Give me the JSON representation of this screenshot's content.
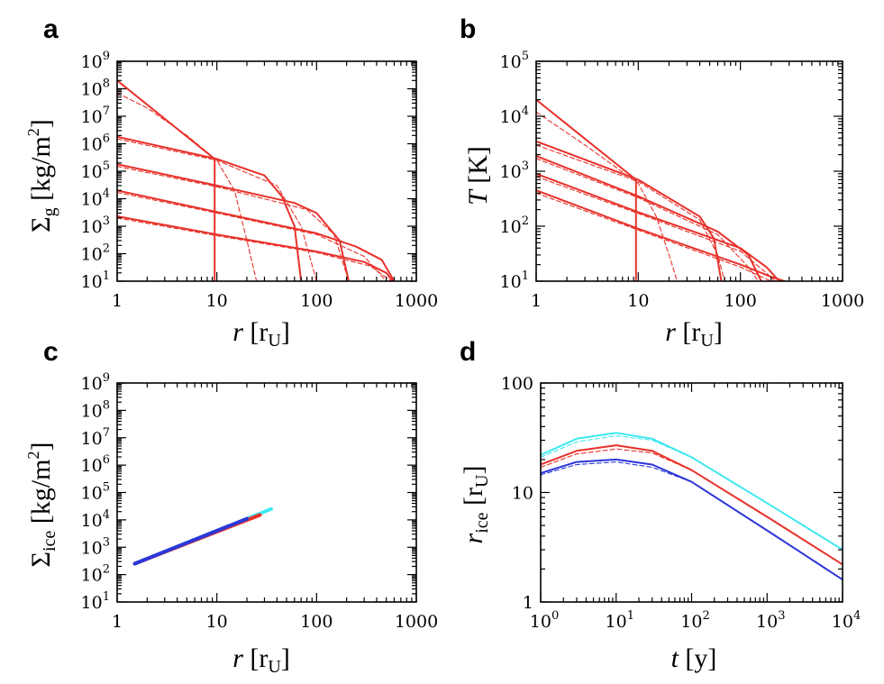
{
  "chart_data": [
    {
      "panel": "a",
      "type": "line",
      "xscale": "log",
      "yscale": "log",
      "xlim": [
        1,
        1000
      ],
      "ylim": [
        10,
        1000000000
      ],
      "xticks": [
        "1",
        "10",
        "100",
        "1000"
      ],
      "yticks": [
        "10^1",
        "10^2",
        "10^3",
        "10^4",
        "10^5",
        "10^6",
        "10^7",
        "10^8",
        "10^9"
      ],
      "xlabel": "r [r_U]",
      "ylabel": "Σ_g [kg/m^2]",
      "series": [
        {
          "name": "solid-1",
          "style": "solid",
          "color": "#e8312a",
          "points": [
            [
              1,
              200000000
            ],
            [
              9.5,
              280000
            ],
            [
              9.5,
              10
            ]
          ]
        },
        {
          "name": "solid-2",
          "style": "solid",
          "color": "#e8312a",
          "points": [
            [
              1,
              1800000
            ],
            [
              10,
              280000
            ],
            [
              30,
              70000
            ],
            [
              45,
              12000
            ],
            [
              60,
              1000
            ],
            [
              70,
              10
            ]
          ]
        },
        {
          "name": "solid-3",
          "style": "solid",
          "color": "#e8312a",
          "points": [
            [
              1,
              180000
            ],
            [
              10,
              30000
            ],
            [
              60,
              7000
            ],
            [
              100,
              3000
            ],
            [
              170,
              300
            ],
            [
              210,
              10
            ]
          ]
        },
        {
          "name": "solid-4",
          "style": "solid",
          "color": "#e8312a",
          "points": [
            [
              1,
              20000
            ],
            [
              10,
              3300
            ],
            [
              100,
              550
            ],
            [
              250,
              180
            ],
            [
              450,
              60
            ],
            [
              600,
              10
            ]
          ]
        },
        {
          "name": "solid-5",
          "style": "solid",
          "color": "#e8312a",
          "points": [
            [
              1,
              2300
            ],
            [
              10,
              500
            ],
            [
              100,
              120
            ],
            [
              300,
              50
            ],
            [
              500,
              20
            ],
            [
              580,
              10
            ]
          ]
        },
        {
          "name": "dashed-1",
          "style": "dashed",
          "color": "#e8312a",
          "points": [
            [
              1,
              70000000
            ],
            [
              2,
              20000000
            ],
            [
              5,
              2000000
            ],
            [
              10,
              250000
            ],
            [
              15,
              20000
            ],
            [
              20,
              300
            ],
            [
              25,
              10
            ]
          ]
        },
        {
          "name": "dashed-2",
          "style": "dashed",
          "color": "#e8312a",
          "points": [
            [
              1,
              1500000
            ],
            [
              10,
              250000
            ],
            [
              40,
              30000
            ],
            [
              70,
              1000
            ],
            [
              100,
              10
            ]
          ]
        },
        {
          "name": "dashed-3",
          "style": "dashed",
          "color": "#e8312a",
          "points": [
            [
              1,
              150000
            ],
            [
              10,
              27000
            ],
            [
              80,
              4000
            ],
            [
              150,
              500
            ],
            [
              210,
              10
            ]
          ]
        },
        {
          "name": "dashed-4",
          "style": "dashed",
          "color": "#e8312a",
          "points": [
            [
              1,
              17000
            ],
            [
              10,
              3000
            ],
            [
              100,
              500
            ],
            [
              300,
              80
            ],
            [
              500,
              10
            ]
          ]
        },
        {
          "name": "dashed-5",
          "style": "dashed",
          "color": "#e8312a",
          "points": [
            [
              1,
              2000
            ],
            [
              10,
              450
            ],
            [
              100,
              110
            ],
            [
              350,
              35
            ],
            [
              560,
              10
            ]
          ]
        }
      ]
    },
    {
      "panel": "b",
      "type": "line",
      "xscale": "log",
      "yscale": "log",
      "xlim": [
        1,
        1000
      ],
      "ylim": [
        10,
        100000
      ],
      "xticks": [
        "1",
        "10",
        "100",
        "1000"
      ],
      "yticks": [
        "10^1",
        "10^2",
        "10^3",
        "10^4",
        "10^5"
      ],
      "xlabel": "r [r_U]",
      "ylabel": "T [K]",
      "series": [
        {
          "name": "solid-1",
          "style": "solid",
          "color": "#e8312a",
          "points": [
            [
              1,
              20000
            ],
            [
              9.5,
              700
            ],
            [
              9.5,
              10
            ]
          ]
        },
        {
          "name": "solid-2",
          "style": "solid",
          "color": "#e8312a",
          "points": [
            [
              1,
              3500
            ],
            [
              10,
              700
            ],
            [
              40,
              150
            ],
            [
              55,
              60
            ],
            [
              65,
              10
            ]
          ]
        },
        {
          "name": "solid-3",
          "style": "solid",
          "color": "#e8312a",
          "points": [
            [
              1,
              1900
            ],
            [
              10,
              350
            ],
            [
              60,
              80
            ],
            [
              120,
              30
            ],
            [
              160,
              10
            ]
          ]
        },
        {
          "name": "solid-4",
          "style": "solid",
          "color": "#e8312a",
          "points": [
            [
              1,
              900
            ],
            [
              10,
              180
            ],
            [
              100,
              40
            ],
            [
              180,
              18
            ],
            [
              240,
              10
            ]
          ]
        },
        {
          "name": "solid-5",
          "style": "solid",
          "color": "#e8312a",
          "points": [
            [
              1,
              450
            ],
            [
              10,
              90
            ],
            [
              100,
              20
            ],
            [
              200,
              12
            ],
            [
              270,
              10
            ]
          ]
        },
        {
          "name": "dashed-1",
          "style": "dashed",
          "color": "#e8312a",
          "points": [
            [
              1,
              12000
            ],
            [
              3,
              3000
            ],
            [
              10,
              600
            ],
            [
              15,
              150
            ],
            [
              20,
              30
            ],
            [
              24,
              10
            ]
          ]
        },
        {
          "name": "dashed-2",
          "style": "dashed",
          "color": "#e8312a",
          "points": [
            [
              1,
              3000
            ],
            [
              10,
              650
            ],
            [
              40,
              130
            ],
            [
              60,
              30
            ],
            [
              70,
              10
            ]
          ]
        },
        {
          "name": "dashed-3",
          "style": "dashed",
          "color": "#e8312a",
          "points": [
            [
              1,
              1700
            ],
            [
              10,
              330
            ],
            [
              60,
              70
            ],
            [
              120,
              18
            ],
            [
              150,
              10
            ]
          ]
        },
        {
          "name": "dashed-4",
          "style": "dashed",
          "color": "#e8312a",
          "points": [
            [
              1,
              800
            ],
            [
              10,
              170
            ],
            [
              100,
              35
            ],
            [
              180,
              14
            ],
            [
              220,
              10
            ]
          ]
        },
        {
          "name": "dashed-5",
          "style": "dashed",
          "color": "#e8312a",
          "points": [
            [
              1,
              400
            ],
            [
              10,
              85
            ],
            [
              100,
              18
            ],
            [
              200,
              10
            ]
          ]
        }
      ]
    },
    {
      "panel": "c",
      "type": "line",
      "xscale": "log",
      "yscale": "log",
      "xlim": [
        1,
        1000
      ],
      "ylim": [
        10,
        1000000000
      ],
      "xticks": [
        "1",
        "10",
        "100",
        "1000"
      ],
      "yticks": [
        "10^1",
        "10^2",
        "10^3",
        "10^4",
        "10^5",
        "10^6",
        "10^7",
        "10^8",
        "10^9"
      ],
      "xlabel": "r [r_U]",
      "ylabel": "Σ_ice [kg/m^2]",
      "series": [
        {
          "name": "cyan",
          "style": "solid",
          "color": "#3fe8f0",
          "points": [
            [
              1.5,
              250
            ],
            [
              35,
              25000
            ]
          ]
        },
        {
          "name": "red",
          "style": "solid",
          "color": "#e8312a",
          "points": [
            [
              1.5,
              250
            ],
            [
              27,
              15000
            ]
          ]
        },
        {
          "name": "blue",
          "style": "solid",
          "color": "#2c36d8",
          "points": [
            [
              1.5,
              250
            ],
            [
              20,
              11000
            ]
          ]
        }
      ]
    },
    {
      "panel": "d",
      "type": "line",
      "xscale": "log",
      "yscale": "log",
      "xlim": [
        1,
        10000
      ],
      "ylim": [
        1,
        100
      ],
      "xticks": [
        "10^0",
        "10^1",
        "10^2",
        "10^3",
        "10^4"
      ],
      "yticks": [
        "1",
        "10",
        "100"
      ],
      "xlabel": "t [y]",
      "ylabel": "r_ice [r_U]",
      "series": [
        {
          "name": "cyan",
          "style": "solid",
          "color": "#3fe8f0",
          "points": [
            [
              1,
              22
            ],
            [
              3,
              31
            ],
            [
              10,
              35
            ],
            [
              30,
              31
            ],
            [
              100,
              21
            ],
            [
              1000,
              8
            ],
            [
              10000,
              3
            ]
          ]
        },
        {
          "name": "cyan-dashed",
          "style": "dashed",
          "color": "#3fe8f0",
          "points": [
            [
              1,
              21
            ],
            [
              3,
              29
            ],
            [
              10,
              33
            ],
            [
              30,
              30
            ],
            [
              100,
              21
            ],
            [
              1000,
              8
            ],
            [
              10000,
              3
            ]
          ]
        },
        {
          "name": "red",
          "style": "solid",
          "color": "#e8312a",
          "points": [
            [
              1,
              18
            ],
            [
              3,
              24
            ],
            [
              10,
              27
            ],
            [
              30,
              24
            ],
            [
              100,
              16
            ],
            [
              1000,
              6
            ],
            [
              10000,
              2.2
            ]
          ]
        },
        {
          "name": "red-dashed",
          "style": "dashed",
          "color": "#e8312a",
          "points": [
            [
              1,
              17
            ],
            [
              3,
              22.5
            ],
            [
              10,
              25
            ],
            [
              30,
              23
            ],
            [
              100,
              16
            ],
            [
              1000,
              6
            ],
            [
              10000,
              2.2
            ]
          ]
        },
        {
          "name": "blue",
          "style": "solid",
          "color": "#2c36d8",
          "points": [
            [
              1,
              15
            ],
            [
              3,
              19
            ],
            [
              10,
              20
            ],
            [
              30,
              18
            ],
            [
              100,
              12.5
            ],
            [
              1000,
              4.5
            ],
            [
              10000,
              1.6
            ]
          ]
        },
        {
          "name": "blue-dashed",
          "style": "dashed",
          "color": "#2c36d8",
          "points": [
            [
              1,
              14.5
            ],
            [
              3,
              18
            ],
            [
              10,
              19
            ],
            [
              30,
              17
            ],
            [
              100,
              12.5
            ],
            [
              1000,
              4.5
            ],
            [
              10000,
              1.6
            ]
          ]
        }
      ]
    }
  ]
}
